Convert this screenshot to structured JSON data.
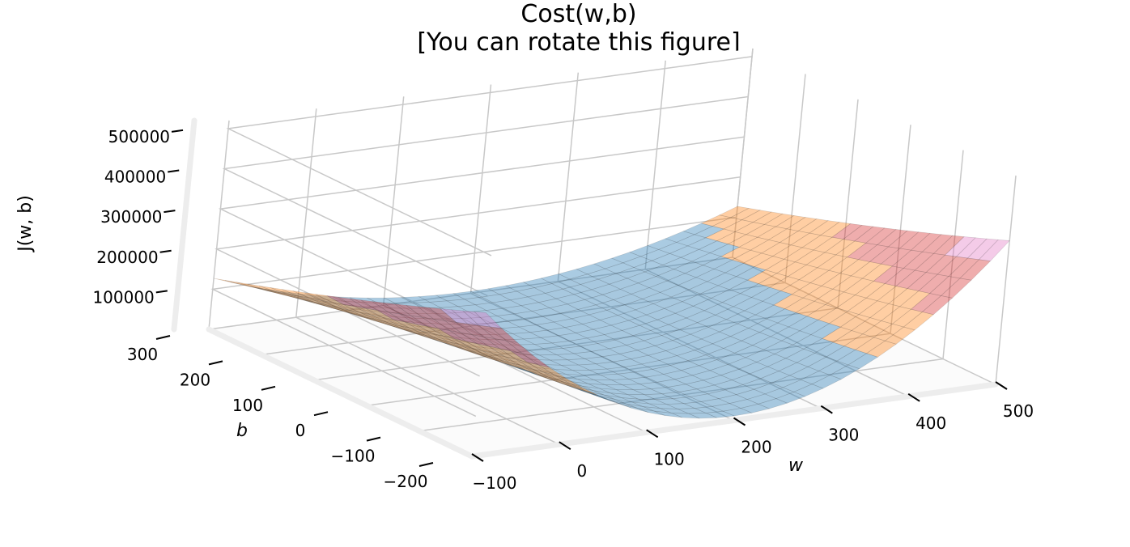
{
  "chart_data": {
    "type": "surface",
    "title": "Cost(w,b)",
    "subtitle": "[You can rotate this figure]",
    "xlabel": "w",
    "ylabel": "b",
    "zlabel": "J(w, b)",
    "xlim": [
      -100,
      500
    ],
    "ylim": [
      -200,
      300
    ],
    "zlim": [
      0,
      520000
    ],
    "x_ticks": [
      -100,
      0,
      100,
      200,
      300,
      400,
      500
    ],
    "y_ticks": [
      -200,
      -100,
      0,
      100,
      200,
      300
    ],
    "z_ticks": [
      100000,
      200000,
      300000,
      400000,
      500000
    ],
    "x_tick_labels": [
      "−100",
      "0",
      "100",
      "200",
      "300",
      "400",
      "500"
    ],
    "y_tick_labels": [
      "−200",
      "−100",
      "0",
      "100",
      "200",
      "300"
    ],
    "z_tick_labels": [
      "100000",
      "200000",
      "300000",
      "400000",
      "500000"
    ],
    "surface_samples": [
      {
        "w": -100,
        "b": -200,
        "J": 2000
      },
      {
        "w": -100,
        "b": 300,
        "J": 2000
      },
      {
        "w": 200,
        "b": 100,
        "J": 0
      },
      {
        "w": 500,
        "b": -200,
        "J": 520000
      },
      {
        "w": 500,
        "b": 300,
        "J": 200000
      }
    ],
    "colormap_bands": [
      {
        "color": "#1f77b4"
      },
      {
        "color": "#ff7f0e"
      },
      {
        "color": "#d62728"
      },
      {
        "color": "#e377c2"
      },
      {
        "color": "#9467bd"
      }
    ],
    "grid": true,
    "projection": "3d"
  }
}
